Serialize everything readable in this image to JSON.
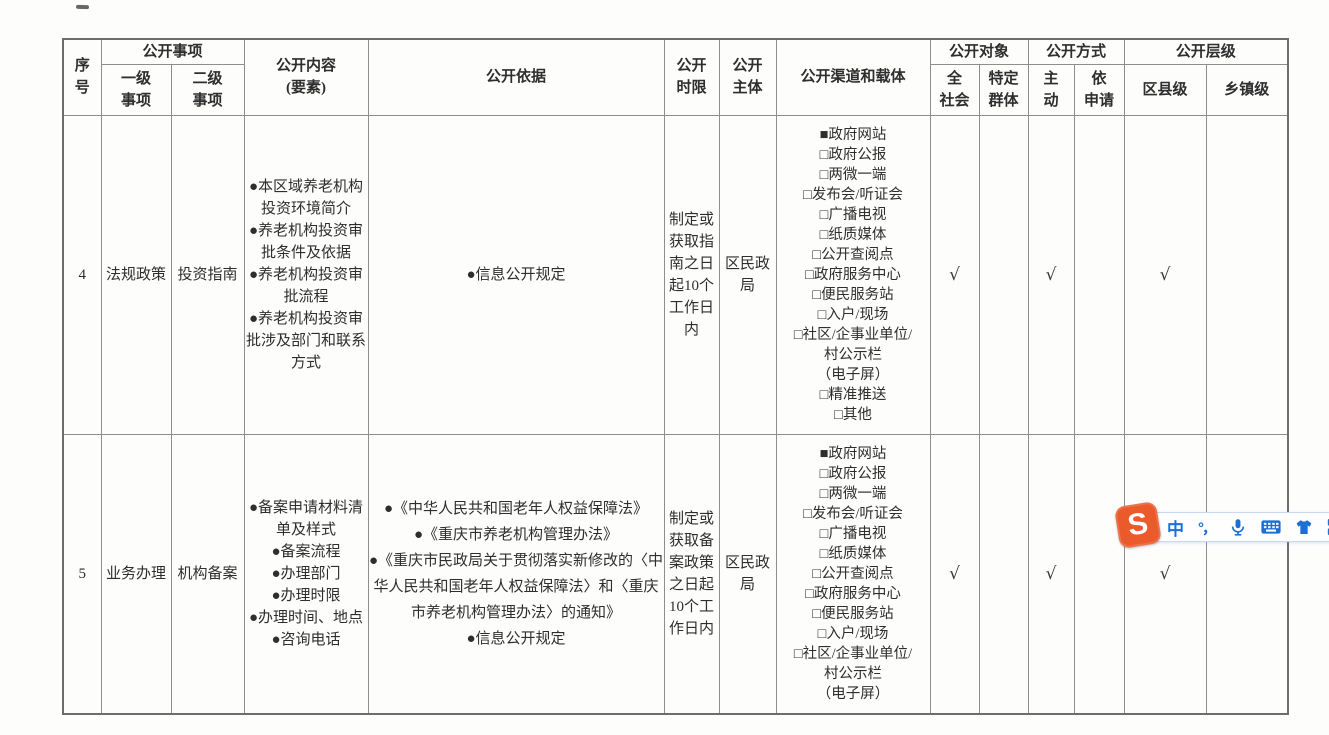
{
  "colors": {
    "border": "#8e8e8e",
    "border-outer": "#6d6d6d",
    "text": "#2e2e2e",
    "icon_blue": "#1c6fd3",
    "sogou_orange": "#ea5a2b",
    "bar_border": "#c9d8ee",
    "page_bg": "#fdfdfc"
  },
  "table": {
    "header": {
      "serial": "序\n号",
      "item_group": "公开事项",
      "item_l1": "一级\n事项",
      "item_l2": "二级\n事项",
      "content": "公开内容\n(要素)",
      "basis": "公开依据",
      "time_limit": "公开\n时限",
      "subject": "公开\n主体",
      "channels": "公开渠道和载体",
      "target_group": "公开对象",
      "target_all": "全\n社会",
      "target_specific": "特定\n群体",
      "method_group": "公开方式",
      "method_active": "主\n动",
      "method_request": "依\n申请",
      "level_group": "公开层级",
      "level_district": "区县级",
      "level_township": "乡镇级"
    },
    "rows": [
      {
        "serial": "4",
        "item_l1": "法规政策",
        "item_l2": "投资指南",
        "content_items": [
          "本区域养老机构投资环境简介",
          "养老机构投资审批条件及依据",
          "养老机构投资审批流程",
          "养老机构投资审批涉及部门和联系方式"
        ],
        "basis_items": [
          "信息公开规定"
        ],
        "time_limit": "制定或获取指南之日起10个工作日内",
        "subject": "区民政局",
        "channel_items": [
          {
            "checked": true,
            "label": "政府网站"
          },
          {
            "checked": false,
            "label": "政府公报"
          },
          {
            "checked": false,
            "label": "两微一端"
          },
          {
            "checked": false,
            "label": "发布会/听证会"
          },
          {
            "checked": false,
            "label": "广播电视"
          },
          {
            "checked": false,
            "label": "纸质媒体"
          },
          {
            "checked": false,
            "label": "公开查阅点"
          },
          {
            "checked": false,
            "label": "政府服务中心"
          },
          {
            "checked": false,
            "label": "便民服务站"
          },
          {
            "checked": false,
            "label": "入户/现场"
          },
          {
            "checked": false,
            "label": "社区/企事业单位/"
          },
          {
            "label": "村公示栏"
          },
          {
            "label": "（电子屏）"
          },
          {
            "checked": false,
            "label": "精准推送"
          },
          {
            "checked": false,
            "label": "其他"
          }
        ],
        "marks": {
          "target_all": "√",
          "target_specific": "",
          "method_active": "√",
          "method_request": "",
          "level_district": "√",
          "level_township": ""
        }
      },
      {
        "serial": "5",
        "item_l1": "业务办理",
        "item_l2": "机构备案",
        "content_items": [
          "备案申请材料清单及样式",
          "备案流程",
          "办理部门",
          "办理时限",
          "办理时间、地点",
          "咨询电话"
        ],
        "basis_items": [
          "《中华人民共和国老年人权益保障法》",
          "《重庆市养老机构管理办法》",
          "《重庆市民政局关于贯彻落实新修改的〈中华人民共和国老年人权益保障法〉和〈重庆市养老机构管理办法〉的通知》",
          "信息公开规定"
        ],
        "time_limit": "制定或获取备案政策之日起10个工作日内",
        "subject": "区民政局",
        "channel_items": [
          {
            "checked": true,
            "label": "政府网站"
          },
          {
            "checked": false,
            "label": "政府公报"
          },
          {
            "checked": false,
            "label": "两微一端"
          },
          {
            "checked": false,
            "label": "发布会/听证会"
          },
          {
            "checked": false,
            "label": "广播电视"
          },
          {
            "checked": false,
            "label": "纸质媒体"
          },
          {
            "checked": false,
            "label": "公开查阅点"
          },
          {
            "checked": false,
            "label": "政府服务中心"
          },
          {
            "checked": false,
            "label": "便民服务站"
          },
          {
            "checked": false,
            "label": "入户/现场"
          },
          {
            "checked": false,
            "label": "社区/企事业单位/"
          },
          {
            "label": "村公示栏"
          },
          {
            "label": "（电子屏）"
          }
        ],
        "marks": {
          "target_all": "√",
          "target_specific": "",
          "method_active": "√",
          "method_request": "",
          "level_district": "√",
          "level_township": ""
        }
      }
    ]
  },
  "ime_toolbar": {
    "logo_letter": "S",
    "mode_label": "中",
    "punctuation_label": "°，"
  }
}
